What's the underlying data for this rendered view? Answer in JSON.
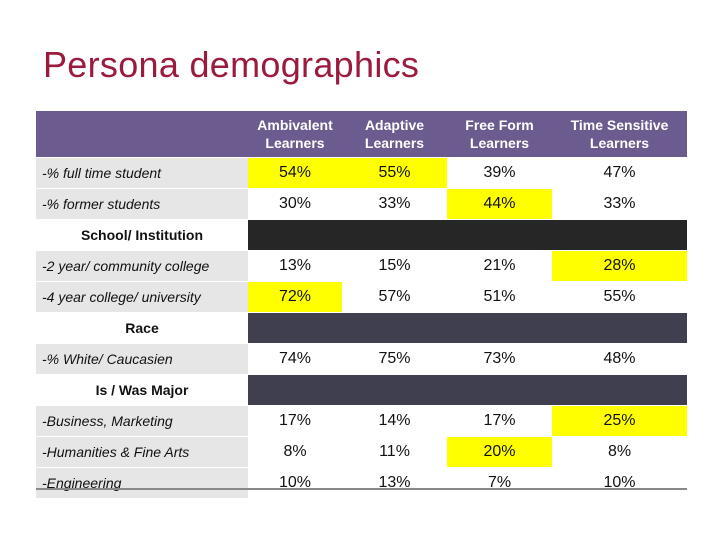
{
  "title": "Persona demographics",
  "headers": [
    "Ambivalent Learners",
    "Adaptive Learners",
    "Free Form Learners",
    "Time Sensitive Learners"
  ],
  "colors": {
    "title": "#9b1b3d",
    "header_bg": "#6b5b8e",
    "highlight": "#ffff00"
  },
  "rows": [
    {
      "label": "-% full time student",
      "values": [
        "54%",
        "55%",
        "39%",
        "47%"
      ]
    },
    {
      "label": "-% former students",
      "values": [
        "30%",
        "33%",
        "44%",
        "33%"
      ]
    },
    {
      "section": "School/ Institution"
    },
    {
      "label": "-2 year/ community college",
      "values": [
        "13%",
        "15%",
        "21%",
        "28%"
      ]
    },
    {
      "label": "-4 year college/ university",
      "values": [
        "72%",
        "57%",
        "51%",
        "55%"
      ]
    },
    {
      "section": "Race"
    },
    {
      "label": "-% White/ Caucasien",
      "values": [
        "74%",
        "75%",
        "73%",
        "48%"
      ]
    },
    {
      "section": "Is / Was Major"
    },
    {
      "label": "-Business, Marketing",
      "values": [
        "17%",
        "14%",
        "17%",
        "25%"
      ]
    },
    {
      "label": "-Humanities & Fine Arts",
      "values": [
        "8%",
        "11%",
        "20%",
        "8%"
      ]
    },
    {
      "label": "-Engineering",
      "values": [
        "10%",
        "13%",
        "7%",
        "10%"
      ]
    }
  ]
}
